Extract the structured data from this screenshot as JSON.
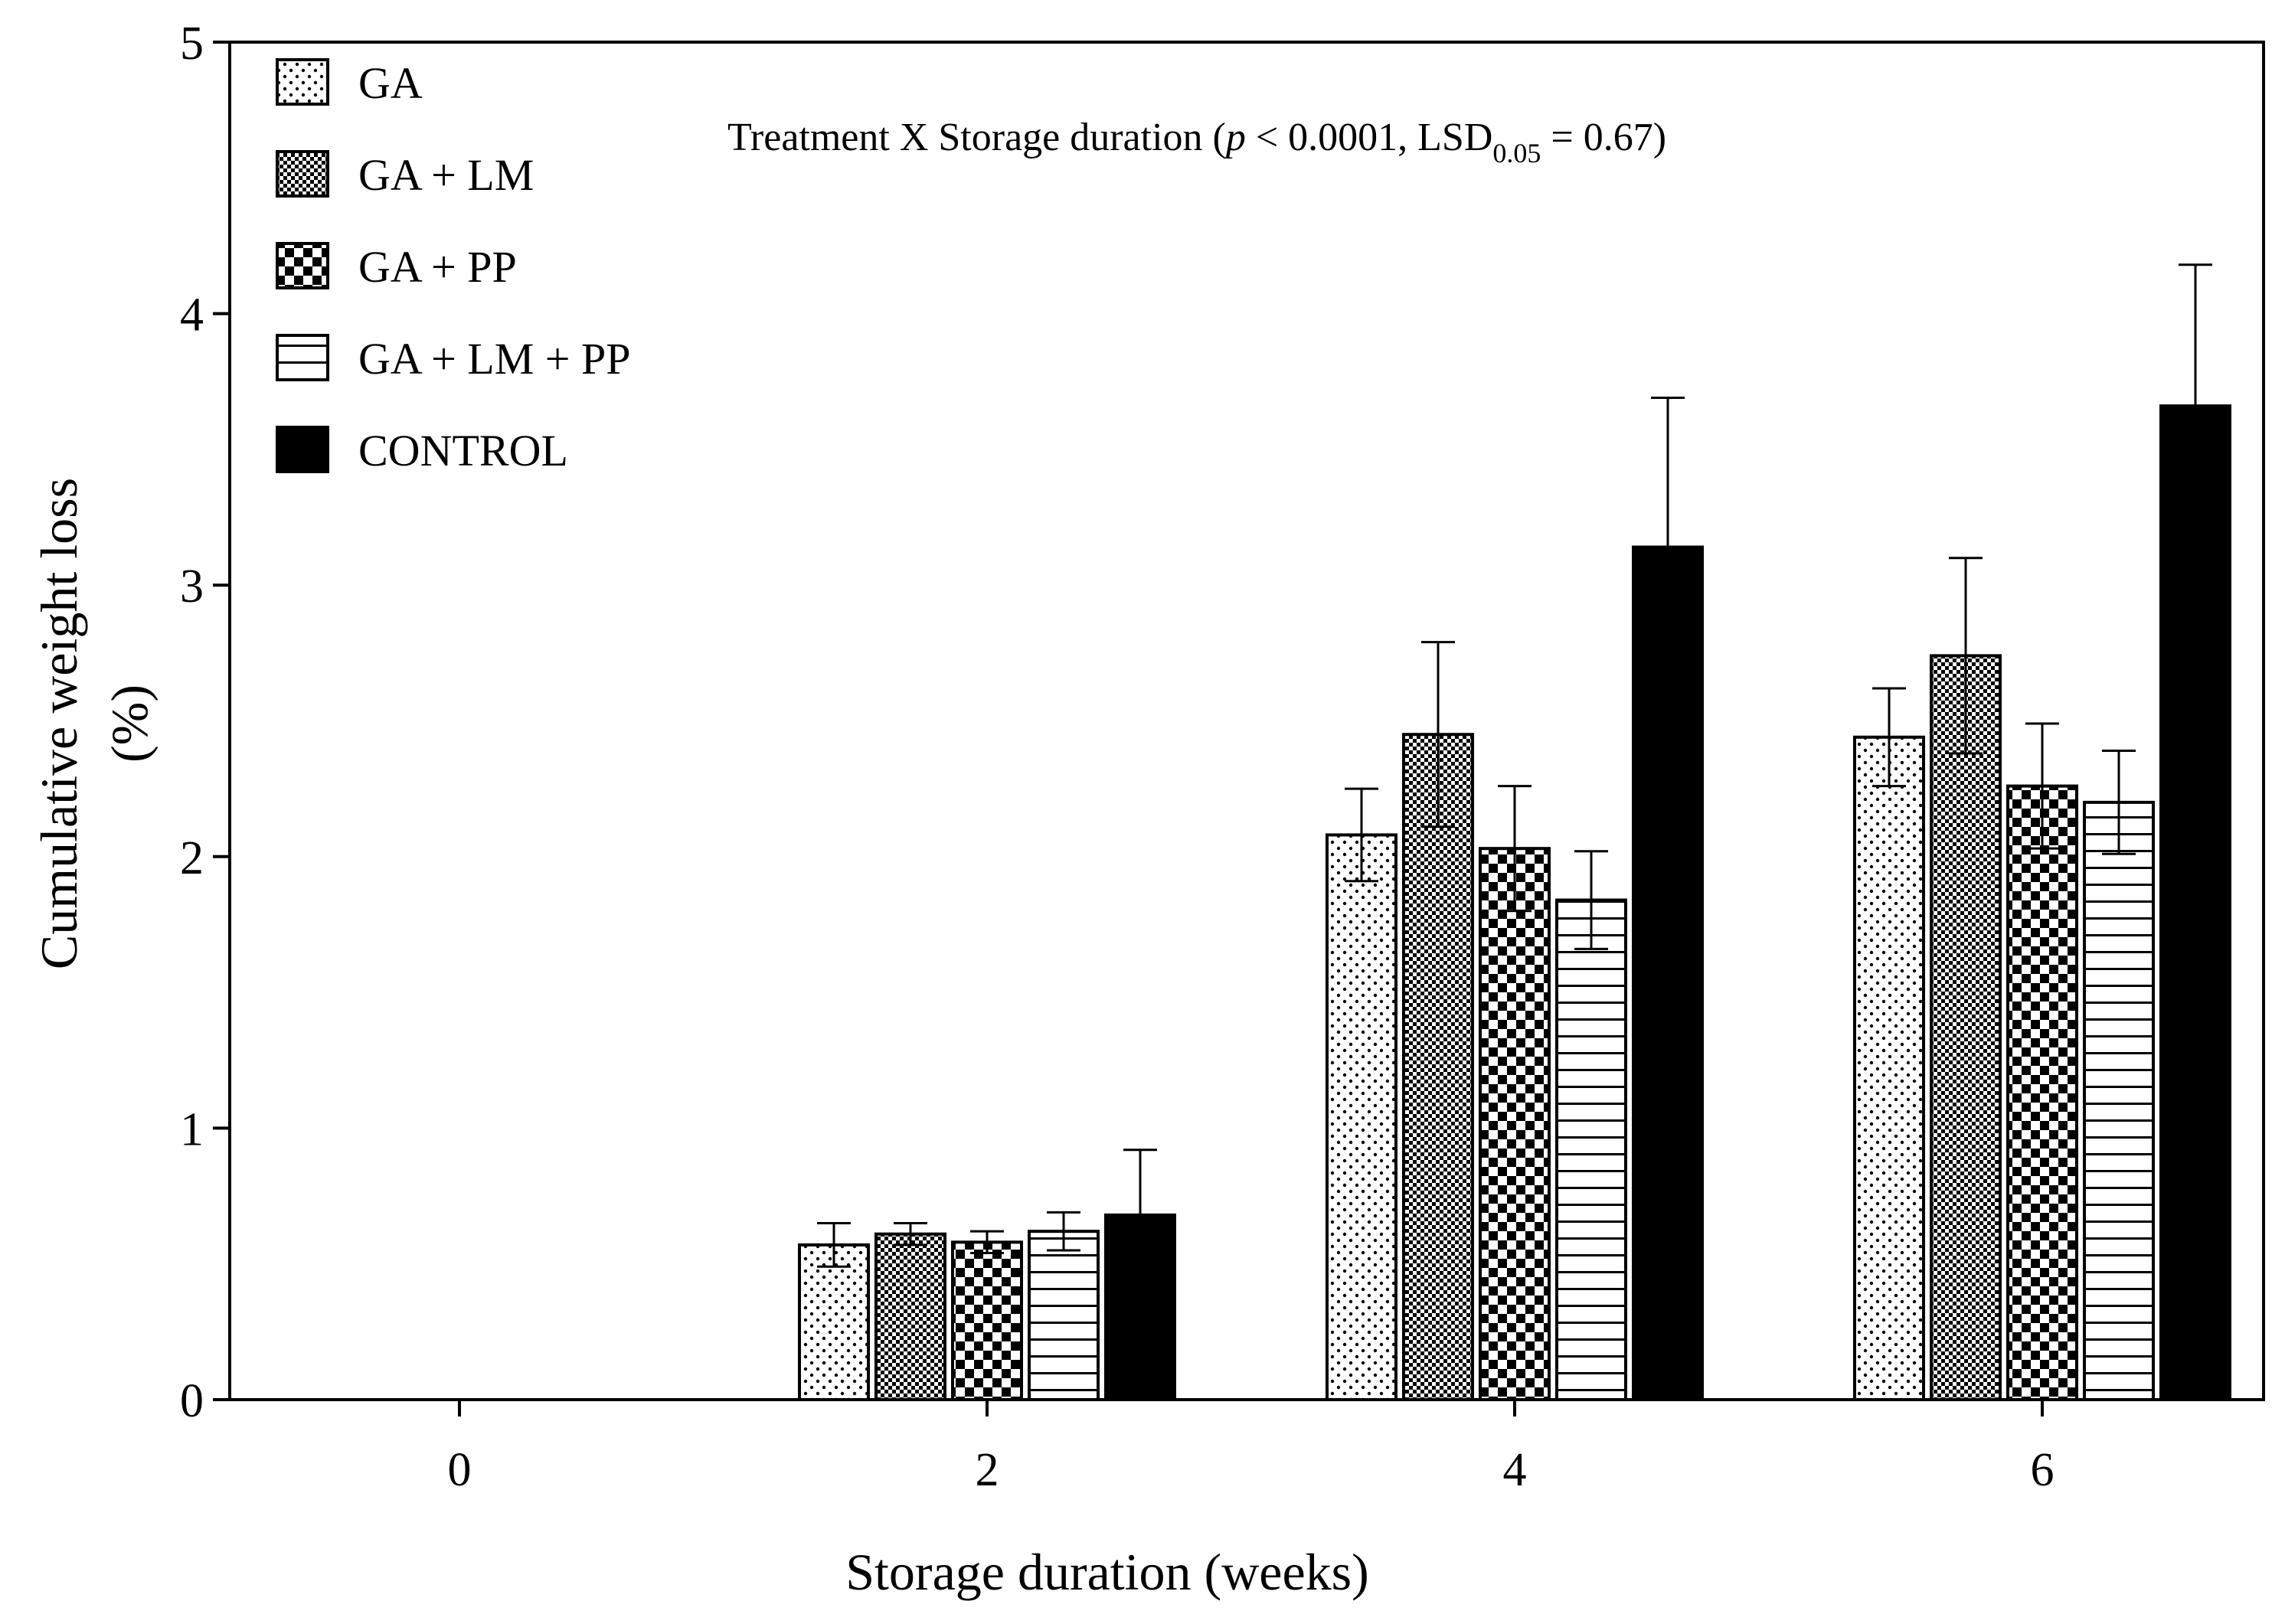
{
  "chart_data": {
    "type": "bar",
    "title": "",
    "annotation": {
      "prefix": "Treatment X Storage duration (",
      "p_symbol": "p",
      "p_text": " < 0.0001, LSD",
      "subscript": "0.05",
      "suffix": " = 0.67)"
    },
    "xlabel": "Storage duration (weeks)",
    "ylabel_line1": "Cumulative weight loss",
    "ylabel_line2": "(%)",
    "categories": [
      "0",
      "2",
      "4",
      "6"
    ],
    "yticks": [
      "0",
      "1",
      "2",
      "3",
      "4",
      "5"
    ],
    "ylim": [
      0,
      5
    ],
    "grid": false,
    "legend_position": "top-left",
    "series": [
      {
        "name": "GA",
        "pattern": "dots",
        "values": [
          0,
          0.57,
          2.08,
          2.44
        ],
        "errors": [
          0,
          0.08,
          0.17,
          0.18
        ]
      },
      {
        "name": "GA + LM",
        "pattern": "fine-check",
        "values": [
          0,
          0.61,
          2.45,
          2.74
        ],
        "errors": [
          0,
          0.04,
          0.34,
          0.36
        ]
      },
      {
        "name": "GA + PP",
        "pattern": "checker",
        "values": [
          0,
          0.58,
          2.03,
          2.26
        ],
        "errors": [
          0,
          0.04,
          0.23,
          0.23
        ]
      },
      {
        "name": "GA + LM + PP",
        "pattern": "hlines",
        "values": [
          0,
          0.62,
          1.84,
          2.2
        ],
        "errors": [
          0,
          0.07,
          0.18,
          0.19
        ]
      },
      {
        "name": "CONTROL",
        "pattern": "solid",
        "values": [
          0,
          0.68,
          3.14,
          3.66
        ],
        "errors": [
          0,
          0.24,
          0.55,
          0.52
        ]
      }
    ],
    "colors": {
      "ink": "#000000",
      "background": "#ffffff"
    }
  }
}
